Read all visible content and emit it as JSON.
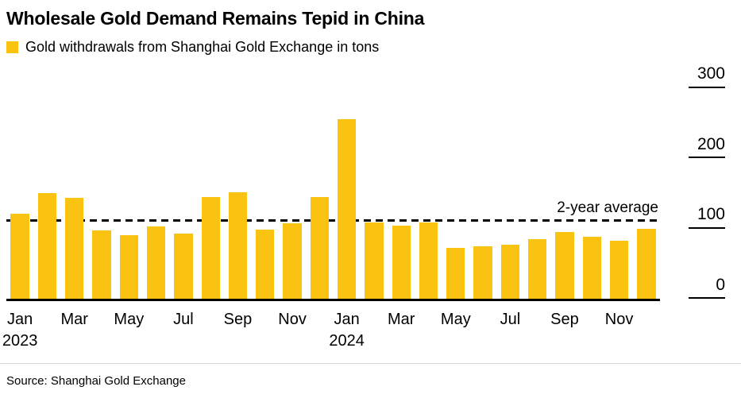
{
  "header": {
    "title": "Wholesale Gold Demand Remains Tepid in China",
    "legend_label": "Gold withdrawals from Shanghai Gold Exchange in tons"
  },
  "footer": {
    "source": "Source: Shanghai Gold Exchange"
  },
  "colors": {
    "bar": "#FBC311",
    "axis": "#000000",
    "divider": "#d8d8d8"
  },
  "chart_data": {
    "type": "bar",
    "title": "Wholesale Gold Demand Remains Tepid in China",
    "legend": "Gold withdrawals from Shanghai Gold Exchange in tons",
    "unit": "tons",
    "categories": [
      "Jan 2023",
      "Feb 2023",
      "Mar 2023",
      "Apr 2023",
      "May 2023",
      "Jun 2023",
      "Jul 2023",
      "Aug 2023",
      "Sep 2023",
      "Oct 2023",
      "Nov 2023",
      "Dec 2023",
      "Jan 2024",
      "Feb 2024",
      "Mar 2024",
      "Apr 2024",
      "May 2024",
      "Jun 2024",
      "Jul 2024",
      "Aug 2024",
      "Sep 2024",
      "Oct 2024",
      "Nov 2024",
      "Dec 2024"
    ],
    "values": [
      121,
      150,
      143,
      97,
      90,
      103,
      93,
      145,
      152,
      98,
      107,
      145,
      255,
      108,
      104,
      108,
      72,
      75,
      77,
      85,
      95,
      88,
      82,
      100
    ],
    "ylim": [
      0,
      300
    ],
    "yticks": [
      0,
      100,
      200,
      300
    ],
    "xticks": [
      {
        "index": 0,
        "label": "Jan",
        "year": "2023"
      },
      {
        "index": 2,
        "label": "Mar"
      },
      {
        "index": 4,
        "label": "May"
      },
      {
        "index": 6,
        "label": "Jul"
      },
      {
        "index": 8,
        "label": "Sep"
      },
      {
        "index": 10,
        "label": "Nov"
      },
      {
        "index": 12,
        "label": "Jan",
        "year": "2024"
      },
      {
        "index": 14,
        "label": "Mar"
      },
      {
        "index": 16,
        "label": "May"
      },
      {
        "index": 18,
        "label": "Jul"
      },
      {
        "index": 20,
        "label": "Sep"
      },
      {
        "index": 22,
        "label": "Nov"
      }
    ],
    "average_line": {
      "value": 110,
      "label": "2-year average"
    },
    "legend_position": "top-left",
    "yaxis_position": "right",
    "grid": false
  }
}
